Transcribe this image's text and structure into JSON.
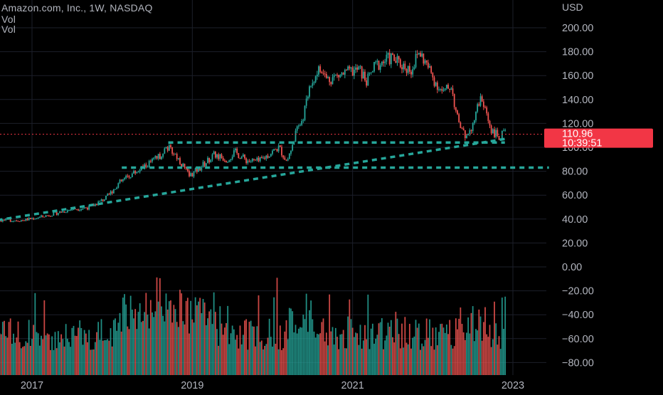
{
  "header": {
    "title": "Amazon.com, Inc., 1W, NASDAQ",
    "vol_labels": [
      "Vol",
      "Vol"
    ]
  },
  "currency": "USD",
  "price_badge": {
    "price": "110.96",
    "countdown": "10:39:51",
    "color": "#f23645"
  },
  "colors": {
    "up": "#26a69a",
    "down": "#ef5350",
    "trendline": "#26a69a",
    "grid": "#1c1f2a",
    "price_line": "#f23645",
    "background": "#000000"
  },
  "chart_data": {
    "type": "candlestick",
    "title": "Amazon.com, Inc., 1W, NASDAQ",
    "x_ticks": [
      "2017",
      "2019",
      "2021",
      "2023"
    ],
    "x_tick_dates": [
      2017.0,
      2019.0,
      2021.0,
      2023.0
    ],
    "x_range": [
      2016.0,
      2023.45
    ],
    "y_ticks": [
      "200.00",
      "180.00",
      "160.00",
      "140.00",
      "120.00",
      "100.00",
      "80.00",
      "60.00",
      "40.00",
      "20.00",
      "0.00",
      "−20.00",
      "−40.00",
      "−60.00",
      "−80.00"
    ],
    "y_range": [
      -88,
      222
    ],
    "last_price": 110.96,
    "grid": true,
    "price_keypoints": [
      [
        2016.0,
        37
      ],
      [
        2016.3,
        38
      ],
      [
        2016.6,
        39
      ],
      [
        2016.9,
        39
      ],
      [
        2017.15,
        42
      ],
      [
        2017.5,
        48
      ],
      [
        2017.75,
        50
      ],
      [
        2017.95,
        58
      ],
      [
        2018.1,
        70
      ],
      [
        2018.25,
        77
      ],
      [
        2018.45,
        85
      ],
      [
        2018.6,
        92
      ],
      [
        2018.7,
        100
      ],
      [
        2018.8,
        95
      ],
      [
        2018.9,
        85
      ],
      [
        2018.98,
        76
      ],
      [
        2019.1,
        82
      ],
      [
        2019.3,
        94
      ],
      [
        2019.45,
        90
      ],
      [
        2019.55,
        96
      ],
      [
        2019.7,
        89
      ],
      [
        2019.85,
        88
      ],
      [
        2019.95,
        93
      ],
      [
        2020.1,
        100
      ],
      [
        2020.2,
        88
      ],
      [
        2020.3,
        110
      ],
      [
        2020.4,
        125
      ],
      [
        2020.5,
        155
      ],
      [
        2020.6,
        165
      ],
      [
        2020.7,
        157
      ],
      [
        2020.85,
        160
      ],
      [
        2021.0,
        163
      ],
      [
        2021.1,
        165
      ],
      [
        2021.2,
        155
      ],
      [
        2021.3,
        168
      ],
      [
        2021.5,
        175
      ],
      [
        2021.6,
        170
      ],
      [
        2021.75,
        165
      ],
      [
        2021.85,
        180
      ],
      [
        2021.95,
        168
      ],
      [
        2022.05,
        155
      ],
      [
        2022.15,
        145
      ],
      [
        2022.25,
        152
      ],
      [
        2022.32,
        125
      ],
      [
        2022.42,
        108
      ],
      [
        2022.52,
        120
      ],
      [
        2022.6,
        140
      ],
      [
        2022.68,
        130
      ],
      [
        2022.75,
        115
      ],
      [
        2022.85,
        108
      ],
      [
        2022.92,
        112
      ]
    ],
    "trendlines": [
      {
        "type": "rising_support",
        "from": [
          2016.0,
          33
        ],
        "to": [
          2022.9,
          107
        ]
      },
      {
        "type": "horizontal_support",
        "from": [
          2018.12,
          83
        ],
        "to": [
          2023.45,
          83
        ]
      },
      {
        "type": "horizontal_resistance",
        "from": [
          2018.7,
          104
        ],
        "to": [
          2022.9,
          104
        ]
      }
    ],
    "volume": {
      "axis_label": "Vol",
      "relative_levels": true
    }
  }
}
